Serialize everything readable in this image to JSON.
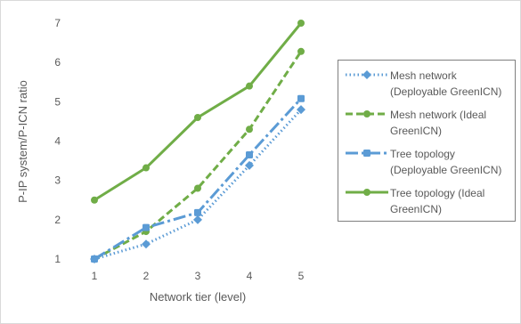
{
  "chart_data": {
    "type": "line",
    "xlabel": "Network tier (level)",
    "ylabel": "P-IP system/P-ICN ratio",
    "x": [
      1,
      2,
      3,
      4,
      5
    ],
    "ylim": [
      1,
      7
    ],
    "yticks": [
      1,
      2,
      3,
      4,
      5,
      6,
      7
    ],
    "grid": false,
    "legend_position": "right",
    "series": [
      {
        "name": "Mesh network (Deployable GreenICN)",
        "values": [
          1.0,
          1.38,
          2.0,
          3.38,
          4.8
        ],
        "color": "#5b9bd5",
        "dash": "dotted",
        "marker": "diamond"
      },
      {
        "name": "Mesh network (Ideal GreenICN)",
        "values": [
          1.0,
          1.7,
          2.8,
          4.3,
          6.28
        ],
        "color": "#70ad47",
        "dash": "dashed",
        "marker": "circle"
      },
      {
        "name": "Tree topology (Deployable GreenICN)",
        "values": [
          1.0,
          1.8,
          2.18,
          3.65,
          5.08
        ],
        "color": "#5b9bd5",
        "dash": "dashdot",
        "marker": "square"
      },
      {
        "name": "Tree topology (Ideal GreenICN)",
        "values": [
          2.5,
          3.32,
          4.6,
          5.4,
          7.0
        ],
        "color": "#70ad47",
        "dash": "solid",
        "marker": "circle"
      }
    ]
  }
}
